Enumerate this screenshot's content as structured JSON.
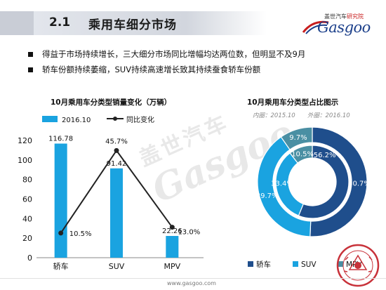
{
  "header": {
    "section_number": "2.1",
    "title": "乘用车细分市场"
  },
  "logo": {
    "cn_prefix": "盖世汽车",
    "cn_suffix": "研究院",
    "en": "Gasgoo"
  },
  "bullets": [
    "得益于市场持续增长，三大细分市场同比增幅均达两位数，但明显不及9月",
    "轿车份额持续萎缩，SUV持续高速增长致其持续蚕食轿车份额"
  ],
  "colors": {
    "dark_blue": "#1f4e8c",
    "light_blue": "#1aa3e0",
    "teal": "#4a8fa3",
    "line": "#222222"
  },
  "chart_data": [
    {
      "type": "bar",
      "title": "10月乘用车分类型销量变化（万辆）",
      "categories": [
        "轿车",
        "SUV",
        "MPV"
      ],
      "series": [
        {
          "name": "2016.10",
          "kind": "bar",
          "values": [
            116.78,
            91.42,
            22.26
          ],
          "labels": [
            "116.78",
            "91.42",
            "22.26"
          ]
        },
        {
          "name": "同比变化",
          "kind": "line",
          "values": [
            10.5,
            45.7,
            13.0
          ],
          "labels": [
            "10.5%",
            "45.7%",
            "13.0%"
          ]
        }
      ],
      "ylim": [
        0,
        120
      ],
      "yticks": [
        0,
        20,
        40,
        60,
        80,
        100,
        120
      ],
      "secondary_ylim_percent": [
        0,
        50
      ],
      "legend": "top-left"
    },
    {
      "type": "pie",
      "title": "10月乘用车分类型占比图示",
      "subtitle_inner": "内圈：2015.10",
      "subtitle_outer": "外圈：2016.10",
      "categories": [
        "轿车",
        "SUV",
        "MPV"
      ],
      "inner_ring": [
        {
          "name": "轿车",
          "value": 56.2,
          "label": "56.2%"
        },
        {
          "name": "SUV",
          "value": 33.4,
          "label": "33.4%"
        },
        {
          "name": "MPV",
          "value": 10.5,
          "label": "10.5%"
        }
      ],
      "outer_ring": [
        {
          "name": "轿车",
          "value": 50.7,
          "label": "50.7%"
        },
        {
          "name": "SUV",
          "value": 39.7,
          "label": "39.7%"
        },
        {
          "name": "MPV",
          "value": 9.7,
          "label": "9.7%"
        }
      ],
      "legend": "bottom"
    }
  ],
  "watermark": {
    "cn": "盖世汽车",
    "en": "Gasgoo"
  },
  "footer": {
    "url": "www.gasgoo.com"
  }
}
